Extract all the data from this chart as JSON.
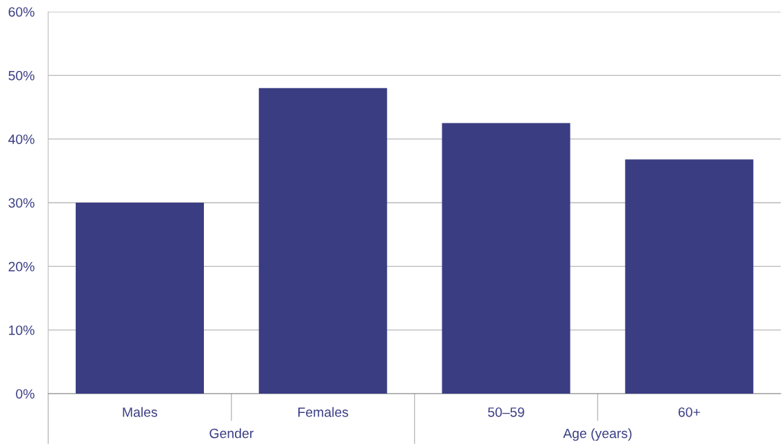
{
  "chart_data": {
    "type": "bar",
    "categories": [
      "Males",
      "Females",
      "50–59",
      "60+"
    ],
    "values": [
      30,
      48,
      42.5,
      36.8
    ],
    "color": "#3a3d82",
    "ylim": [
      0,
      60
    ],
    "yticks": [
      {
        "value": 0,
        "label": "0%"
      },
      {
        "value": 10,
        "label": "10%"
      },
      {
        "value": 20,
        "label": "20%"
      },
      {
        "value": 30,
        "label": "30%"
      },
      {
        "value": 40,
        "label": "40%"
      },
      {
        "value": 50,
        "label": "50%"
      },
      {
        "value": 60,
        "label": "60%"
      }
    ],
    "grid": "y",
    "annotations": [
      "Gender",
      "Age (years)"
    ]
  }
}
